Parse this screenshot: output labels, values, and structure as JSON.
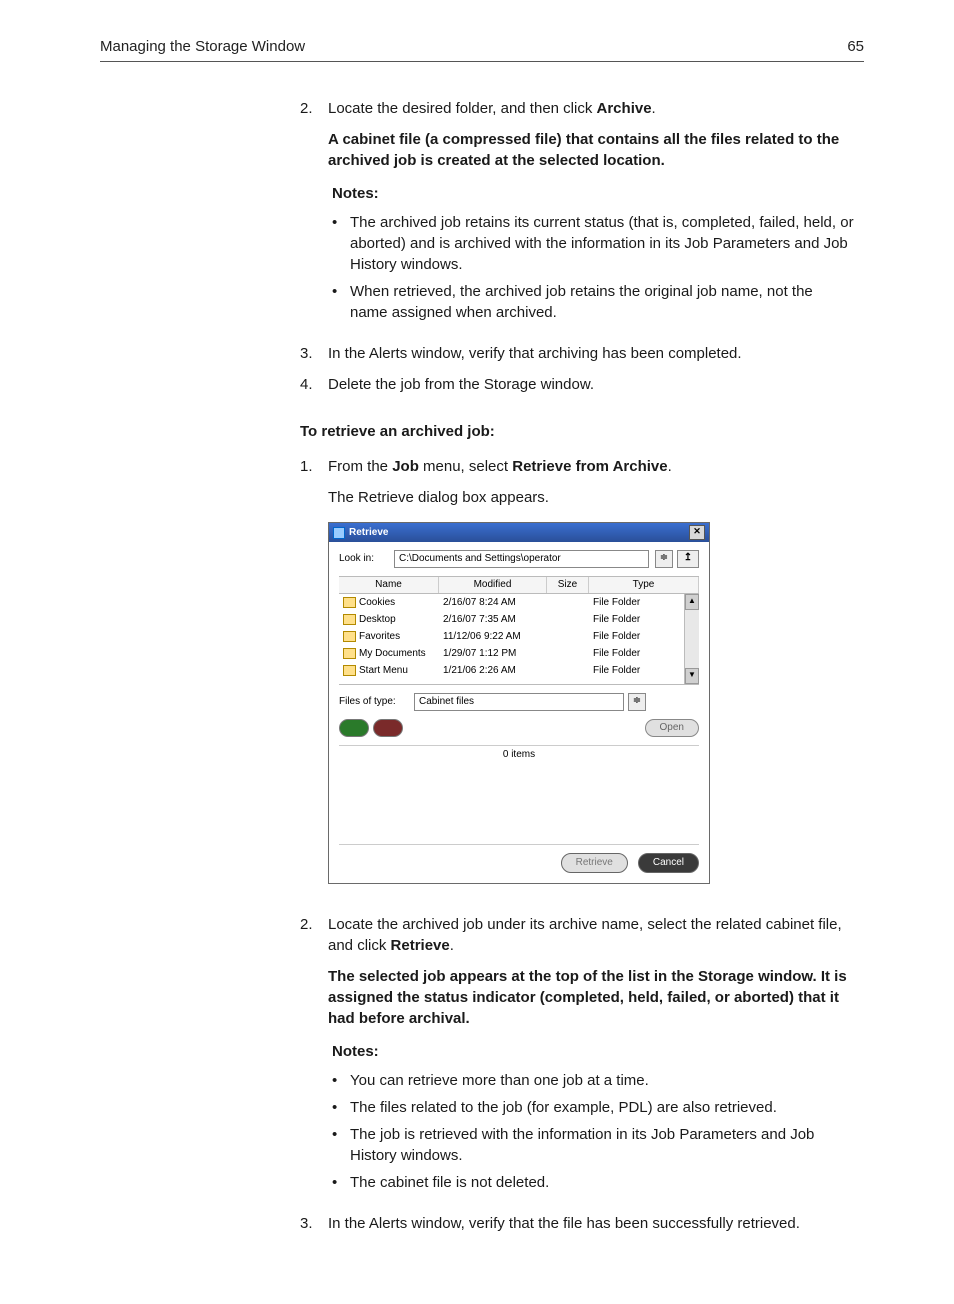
{
  "header": {
    "title": "Managing the Storage Window",
    "page": "65"
  },
  "section1": {
    "steps": [
      {
        "num": "2.",
        "para1_a": "Locate the desired folder, and then click ",
        "para1_b": "Archive",
        "para1_c": ".",
        "para2": "A cabinet file (a compressed file) that contains all the files related to the archived job is created at the selected location.",
        "notes_label": "Notes:",
        "notes": [
          "The archived job retains its current status (that is, completed, failed, held, or aborted) and is archived with the information in its Job Parameters and Job History windows.",
          "When retrieved, the archived job retains the original job name, not the name assigned when archived."
        ]
      },
      {
        "num": "3.",
        "para1": "In the Alerts window, verify that archiving has been completed."
      },
      {
        "num": "4.",
        "para1": "Delete the job from the Storage window."
      }
    ]
  },
  "subhead": "To retrieve an archived job:",
  "section2": {
    "steps": [
      {
        "num": "1.",
        "p1_a": "From the ",
        "p1_b": "Job",
        "p1_c": " menu, select ",
        "p1_d": "Retrieve from Archive",
        "p1_e": ".",
        "p2": "The Retrieve dialog box appears."
      },
      {
        "num": "2.",
        "p1_a": "Locate the archived job under its archive name, select the related cabinet file, and click ",
        "p1_b": "Retrieve",
        "p1_c": ".",
        "p2_a": "The selected job appears at the top of the list in the Storage window. It is assigned the status indicator (",
        "p2_b": "completed",
        "p2_c": ", ",
        "p2_d": "held",
        "p2_e": ", ",
        "p2_f": "failed",
        "p2_g": ", or ",
        "p2_h": "aborted",
        "p2_i": ") that it had before archival.",
        "notes_label": "Notes:",
        "notes": [
          "You can retrieve more than one job at a time.",
          "The files related to the job (for example, PDL) are also retrieved.",
          "The job is retrieved with the information in its Job Parameters and Job History windows.",
          "The cabinet file is not deleted."
        ]
      },
      {
        "num": "3.",
        "p1": "In the Alerts window, verify that the file has been successfully retrieved."
      }
    ]
  },
  "dialog": {
    "title": "Retrieve",
    "look_in_label": "Look in:",
    "look_in_path": "C:\\Documents and Settings\\operator",
    "columns": {
      "name": "Name",
      "modified": "Modified",
      "size": "Size",
      "type": "Type"
    },
    "rows": [
      {
        "name": "Cookies",
        "modified": "2/16/07 8:24 AM",
        "size": "",
        "type": "File Folder"
      },
      {
        "name": "Desktop",
        "modified": "2/16/07 7:35 AM",
        "size": "",
        "type": "File Folder"
      },
      {
        "name": "Favorites",
        "modified": "11/12/06 9:22 AM",
        "size": "",
        "type": "File Folder"
      },
      {
        "name": "My Documents",
        "modified": "1/29/07 1:12 PM",
        "size": "",
        "type": "File Folder"
      },
      {
        "name": "Start Menu",
        "modified": "1/21/06 2:26 AM",
        "size": "",
        "type": "File Folder"
      }
    ],
    "files_of_type_label": "Files of type:",
    "files_of_type_value": "Cabinet files",
    "open_label": "Open",
    "items_label": "0 items",
    "retrieve_label": "Retrieve",
    "cancel_label": "Cancel",
    "close_glyph": "✕",
    "up_glyph": "↥",
    "spin_glyph": "≑",
    "scroll_up": "▲",
    "scroll_down": "▼"
  }
}
